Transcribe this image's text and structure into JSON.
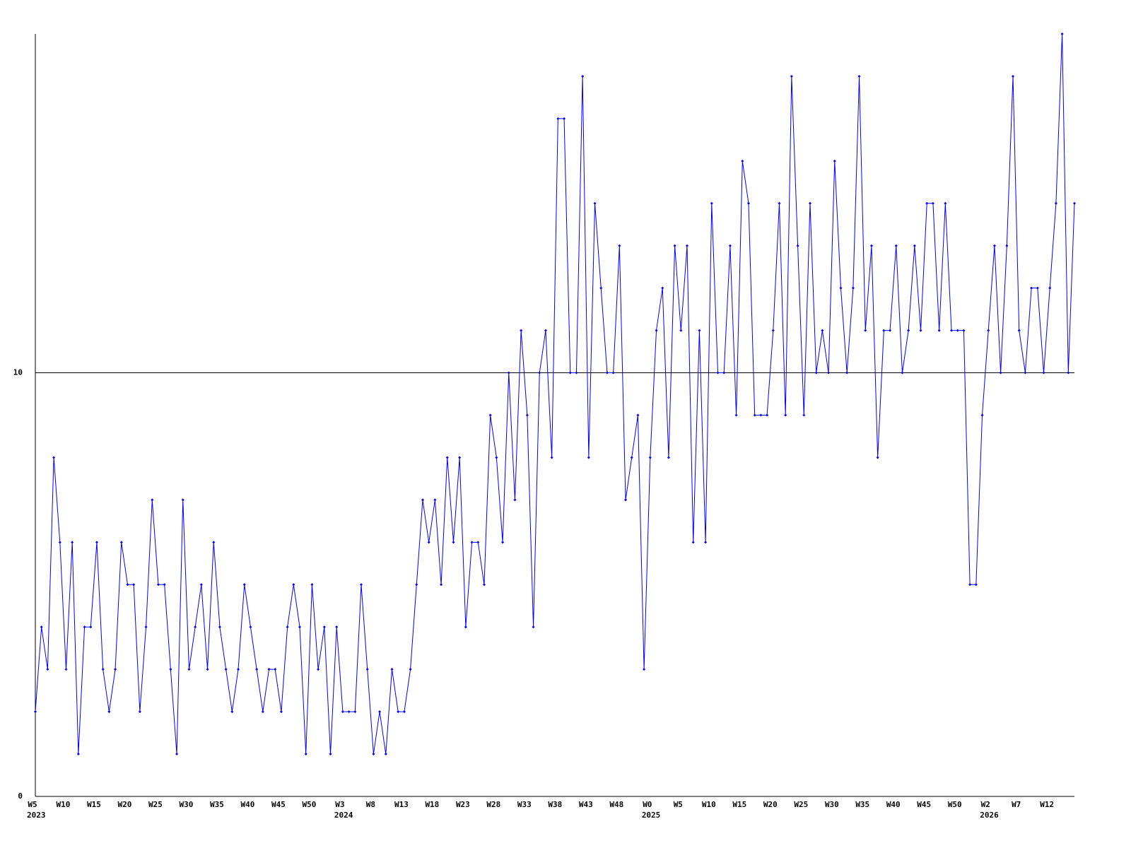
{
  "chart_data": {
    "type": "line",
    "color": "#0000ff",
    "ylim": [
      0,
      18
    ],
    "yticks": [
      0,
      10
    ],
    "grid": true,
    "categories": [
      "W5",
      null,
      null,
      null,
      null,
      "W10",
      null,
      null,
      null,
      null,
      "W15",
      null,
      null,
      null,
      null,
      "W20",
      null,
      null,
      null,
      null,
      "W25",
      null,
      null,
      null,
      null,
      "W30",
      null,
      null,
      null,
      null,
      "W35",
      null,
      null,
      null,
      null,
      "W40",
      null,
      null,
      null,
      null,
      "W45",
      null,
      null,
      null,
      null,
      "W50",
      null,
      null,
      null,
      null,
      "W3",
      null,
      null,
      null,
      null,
      "W8",
      null,
      null,
      null,
      null,
      "W13",
      null,
      null,
      null,
      null,
      "W18",
      null,
      null,
      null,
      null,
      "W23",
      null,
      null,
      null,
      null,
      "W28",
      null,
      null,
      null,
      null,
      "W33",
      null,
      null,
      null,
      null,
      "W38",
      null,
      null,
      null,
      null,
      "W43",
      null,
      null,
      null,
      null,
      "W48",
      null,
      null,
      null,
      null,
      "W0",
      null,
      null,
      null,
      null,
      "W5",
      null,
      null,
      null,
      null,
      "W10",
      null,
      null,
      null,
      null,
      "W15",
      null,
      null,
      null,
      null,
      "W20",
      null,
      null,
      null,
      null,
      "W25",
      null,
      null,
      null,
      null,
      "W30",
      null,
      null,
      null,
      null,
      "W35",
      null,
      null,
      null,
      null,
      "W40",
      null,
      null,
      null,
      null,
      "W45",
      null,
      null,
      null,
      null,
      "W50",
      null,
      null,
      null,
      null,
      "W2",
      null,
      null,
      null,
      null,
      "W7",
      null,
      null,
      null,
      null,
      "W12",
      null,
      null,
      null,
      null
    ],
    "year_labels": [
      "2023",
      null,
      null,
      null,
      null,
      null,
      null,
      null,
      null,
      null,
      null,
      null,
      null,
      null,
      null,
      null,
      null,
      null,
      null,
      null,
      null,
      null,
      null,
      null,
      null,
      null,
      null,
      null,
      null,
      null,
      null,
      null,
      null,
      null,
      null,
      null,
      null,
      null,
      null,
      null,
      null,
      null,
      null,
      null,
      null,
      null,
      null,
      null,
      null,
      null,
      "2024",
      null,
      null,
      null,
      null,
      null,
      null,
      null,
      null,
      null,
      null,
      null,
      null,
      null,
      null,
      null,
      null,
      null,
      null,
      null,
      null,
      null,
      null,
      null,
      null,
      null,
      null,
      null,
      null,
      null,
      null,
      null,
      null,
      null,
      null,
      null,
      null,
      null,
      null,
      null,
      null,
      null,
      null,
      null,
      null,
      null,
      null,
      null,
      null,
      null,
      "2025",
      null,
      null,
      null,
      null,
      null,
      null,
      null,
      null,
      null,
      null,
      null,
      null,
      null,
      null,
      null,
      null,
      null,
      null,
      null,
      null,
      null,
      null,
      null,
      null,
      null,
      null,
      null,
      null,
      null,
      null,
      null,
      null,
      null,
      null,
      null,
      null,
      null,
      null,
      null,
      null,
      null,
      null,
      null,
      null,
      null,
      null,
      null,
      null,
      null,
      null,
      null,
      null,
      null,
      null,
      "2026",
      null,
      null,
      null,
      null,
      null,
      null,
      null,
      null,
      null,
      null,
      null,
      null,
      null,
      null
    ],
    "values": [
      2,
      4,
      3,
      8,
      6,
      3,
      6,
      1,
      4,
      4,
      6,
      3,
      2,
      3,
      6,
      5,
      5,
      2,
      4,
      7,
      5,
      5,
      3,
      1,
      7,
      3,
      4,
      5,
      3,
      6,
      4,
      3,
      2,
      3,
      5,
      4,
      3,
      2,
      3,
      3,
      2,
      4,
      5,
      4,
      1,
      5,
      3,
      4,
      1,
      4,
      2,
      2,
      2,
      5,
      3,
      1,
      2,
      1,
      3,
      2,
      2,
      3,
      5,
      7,
      6,
      7,
      5,
      8,
      6,
      8,
      4,
      6,
      6,
      5,
      9,
      8,
      6,
      10,
      7,
      11,
      9,
      4,
      10,
      11,
      8,
      16,
      16,
      10,
      10,
      17,
      8,
      14,
      12,
      10,
      10,
      13,
      7,
      8,
      9,
      3,
      8,
      11,
      12,
      8,
      13,
      11,
      13,
      6,
      11,
      6,
      14,
      10,
      10,
      13,
      9,
      15,
      14,
      9,
      9,
      9,
      11,
      14,
      9,
      17,
      13,
      9,
      14,
      10,
      11,
      10,
      15,
      12,
      10,
      12,
      17,
      11,
      13,
      8,
      11,
      11,
      13,
      10,
      11,
      13,
      11,
      14,
      14,
      11,
      14,
      11,
      11,
      11,
      5,
      5,
      9,
      11,
      13,
      10,
      13,
      17,
      11,
      10,
      12,
      12,
      10,
      12,
      14,
      18,
      10,
      14
    ]
  }
}
